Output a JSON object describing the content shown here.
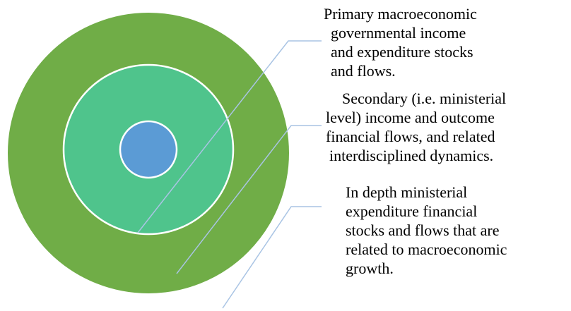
{
  "items": [
    {
      "lines": [
        "Primary macroeconomic",
        "governmental income",
        "and expenditure stocks",
        "and flows."
      ]
    },
    {
      "lines": [
        "Secondary (i.e. ministerial",
        "level) income and outcome",
        "financial flows, and related",
        "interdisciplined dynamics."
      ]
    },
    {
      "lines": [
        "In depth ministerial",
        "expenditure financial",
        "stocks and flows that are",
        "related to macroeconomic",
        "growth."
      ]
    }
  ]
}
